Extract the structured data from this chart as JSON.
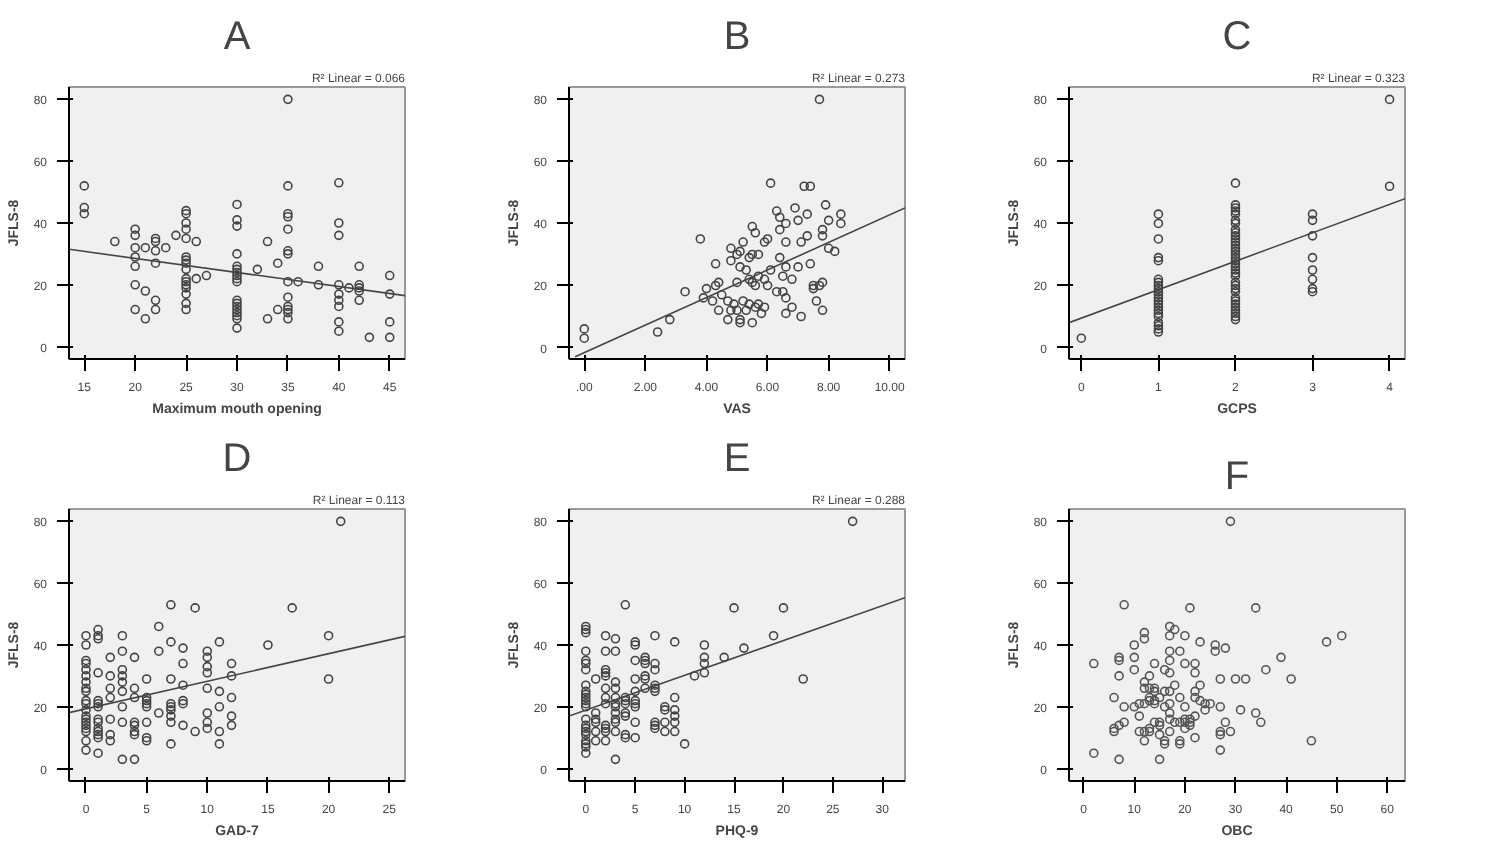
{
  "chart_data": [
    {
      "type": "scatter",
      "title": "A",
      "xlabel": "Maximum mouth opening",
      "ylabel": "JFLS-8",
      "xlim": [
        13.5,
        46.5
      ],
      "ylim": [
        -4,
        84
      ],
      "xticks": [
        15,
        20,
        25,
        30,
        35,
        40,
        45
      ],
      "yticks": [
        0,
        20,
        40,
        60,
        80
      ],
      "grid": false,
      "marker": "circle",
      "annotations": [
        "R² Linear = 0.066"
      ],
      "series": [
        {
          "color": "#444444",
          "x": [
            15,
            15,
            15,
            18,
            20,
            20,
            20,
            20,
            20,
            20,
            20,
            21,
            21,
            21,
            22,
            22,
            22,
            22,
            22,
            22,
            23,
            24,
            25,
            25,
            25,
            25,
            25,
            25,
            25,
            25,
            25,
            25,
            25,
            25,
            25,
            25,
            25,
            25,
            26,
            26,
            27,
            30,
            30,
            30,
            30,
            30,
            30,
            30,
            30,
            30,
            30,
            30,
            30,
            30,
            30,
            30,
            30,
            30,
            30,
            32,
            33,
            33,
            34,
            34,
            35,
            35,
            35,
            35,
            35,
            35,
            35,
            35,
            35,
            35,
            35,
            35,
            35,
            36,
            38,
            38,
            40,
            40,
            40,
            40,
            40,
            40,
            40,
            40,
            40,
            41,
            42,
            42,
            42,
            42,
            42,
            43,
            45,
            45,
            45,
            45
          ],
          "values": [
            52,
            45,
            43,
            34,
            38,
            36,
            32,
            29,
            26,
            20,
            12,
            32,
            18,
            9,
            35,
            34,
            31,
            27,
            15,
            12,
            32,
            36,
            44,
            43,
            40,
            38,
            35,
            29,
            28,
            27,
            25,
            22,
            21,
            20,
            19,
            17,
            14,
            12,
            34,
            22,
            23,
            46,
            41,
            39,
            30,
            26,
            25,
            24,
            23,
            22,
            21,
            15,
            14,
            13,
            12,
            11,
            10,
            9,
            6,
            25,
            34,
            9,
            12,
            27,
            80,
            52,
            43,
            42,
            38,
            31,
            30,
            21,
            16,
            13,
            12,
            11,
            9,
            21,
            26,
            20,
            53,
            40,
            36,
            20,
            17,
            15,
            13,
            8,
            5,
            19,
            26,
            20,
            19,
            18,
            15,
            3,
            23,
            17,
            8,
            3
          ]
        },
        {
          "type": "line",
          "marker": "none",
          "color": "#444444",
          "x": [
            13.5,
            46.5
          ],
          "values": [
            31.5,
            16.5
          ]
        }
      ]
    },
    {
      "type": "scatter",
      "title": "B",
      "xlabel": "VAS",
      "ylabel": "JFLS-8",
      "xlim": [
        -0.5,
        10.5
      ],
      "ylim": [
        -3.7,
        84
      ],
      "xticks": [
        {
          "value": 0,
          "label": ".00"
        },
        {
          "value": 2,
          "label": "2.00"
        },
        {
          "value": 4,
          "label": "4.00"
        },
        {
          "value": 6,
          "label": "6.00"
        },
        {
          "value": 8,
          "label": "8.00"
        },
        {
          "value": 10,
          "label": "10.00"
        }
      ],
      "yticks": [
        0,
        20,
        40,
        60,
        80
      ],
      "grid": false,
      "marker": "circle",
      "annotations": [
        "R² Linear = 0.273"
      ],
      "series": [
        {
          "color": "#444444",
          "x": [
            0,
            0,
            2.8,
            2.4,
            3.3,
            3.8,
            3.9,
            4.0,
            4.2,
            4.3,
            4.3,
            4.4,
            4.4,
            4.5,
            4.7,
            4.7,
            4.8,
            4.8,
            4.8,
            4.9,
            5.0,
            5.0,
            5.0,
            5.1,
            5.1,
            5.1,
            5.1,
            5.2,
            5.2,
            5.3,
            5.3,
            5.4,
            5.4,
            5.4,
            5.5,
            5.5,
            5.5,
            5.5,
            5.6,
            5.6,
            5.6,
            5.7,
            5.7,
            5.7,
            5.8,
            5.9,
            5.9,
            5.9,
            6.0,
            6.0,
            6.1,
            6.1,
            6.3,
            6.3,
            6.4,
            6.4,
            6.4,
            6.5,
            6.5,
            6.6,
            6.6,
            6.6,
            6.6,
            6.6,
            6.8,
            6.8,
            6.9,
            7.0,
            7.0,
            7.1,
            7.1,
            7.2,
            7.3,
            7.3,
            7.4,
            7.4,
            7.5,
            7.5,
            7.6,
            7.7,
            7.7,
            7.8,
            7.8,
            7.8,
            7.8,
            7.9,
            8.0,
            8.0,
            8.2,
            8.4,
            8.4
          ],
          "values": [
            6,
            3,
            9,
            5,
            18,
            35,
            16,
            19,
            15,
            27,
            20,
            21,
            12,
            17,
            15,
            9,
            32,
            28,
            12,
            14,
            30,
            21,
            12,
            31,
            26,
            9,
            8,
            34,
            15,
            25,
            12,
            29,
            22,
            14,
            39,
            30,
            21,
            8,
            37,
            20,
            13,
            30,
            23,
            14,
            11,
            34,
            22,
            13,
            35,
            20,
            25,
            53,
            18,
            44,
            42,
            38,
            29,
            23,
            18,
            40,
            34,
            26,
            16,
            11,
            22,
            13,
            45,
            41,
            26,
            34,
            10,
            52,
            43,
            36,
            52,
            27,
            20,
            19,
            15,
            80,
            20,
            38,
            36,
            21,
            12,
            46,
            41,
            32,
            31,
            43,
            40
          ]
        },
        {
          "type": "line",
          "marker": "none",
          "color": "#444444",
          "x": [
            -0.3,
            10.5
          ],
          "values": [
            -3,
            45
          ]
        }
      ]
    },
    {
      "type": "scatter",
      "title": "C",
      "xlabel": "GCPS",
      "ylabel": "JFLS-8",
      "xlim": [
        -0.16,
        4.2
      ],
      "ylim": [
        -3.7,
        84
      ],
      "xticks": [
        0,
        1,
        2,
        3,
        4
      ],
      "yticks": [
        0,
        20,
        40,
        60,
        80
      ],
      "grid": false,
      "marker": "circle",
      "annotations": [
        "R² Linear = 0.323"
      ],
      "series": [
        {
          "color": "#444444",
          "x": [
            0,
            1,
            1,
            1,
            1,
            1,
            1,
            1,
            1,
            1,
            1,
            1,
            1,
            1,
            1,
            1,
            1,
            1,
            1,
            1,
            1,
            1,
            1,
            2,
            2,
            2,
            2,
            2,
            2,
            2,
            2,
            2,
            2,
            2,
            2,
            2,
            2,
            2,
            2,
            2,
            2,
            2,
            2,
            2,
            2,
            2,
            2,
            2,
            2,
            2,
            2,
            2,
            2,
            2,
            2,
            2,
            2,
            2,
            3,
            3,
            3,
            3,
            3,
            3,
            3,
            3,
            4,
            4
          ],
          "values": [
            3,
            43,
            40,
            35,
            29,
            28,
            22,
            21,
            20,
            19,
            18,
            17,
            16,
            15,
            14,
            13,
            12,
            11,
            10,
            8,
            7,
            6,
            5,
            53,
            46,
            45,
            44,
            43,
            41,
            40,
            38,
            37,
            36,
            35,
            34,
            33,
            32,
            31,
            30,
            29,
            28,
            27,
            26,
            25,
            24,
            23,
            21,
            20,
            19,
            18,
            16,
            15,
            14,
            13,
            12,
            11,
            10,
            9,
            43,
            41,
            36,
            29,
            25,
            22,
            19,
            18,
            80,
            52
          ]
        },
        {
          "type": "line",
          "marker": "none",
          "color": "#444444",
          "x": [
            -0.16,
            4.2
          ],
          "values": [
            8,
            48
          ]
        }
      ]
    },
    {
      "type": "scatter",
      "title": "D",
      "xlabel": "GAD-7",
      "ylabel": "JFLS-8",
      "xlim": [
        -1.4,
        26.3
      ],
      "ylim": [
        -4,
        84
      ],
      "xticks": [
        0,
        5,
        10,
        15,
        20,
        25
      ],
      "yticks": [
        0,
        20,
        40,
        60,
        80
      ],
      "grid": false,
      "marker": "circle",
      "annotations": [
        "R² Linear = 0.113"
      ],
      "series": [
        {
          "color": "#444444",
          "x": [
            0,
            0,
            0,
            0,
            0,
            0,
            0,
            0,
            0,
            0,
            0,
            0,
            0,
            0,
            0,
            0,
            0,
            0,
            0,
            0,
            1,
            1,
            1,
            1,
            1,
            1,
            1,
            1,
            1,
            1,
            1,
            1,
            1,
            1,
            2,
            2,
            2,
            2,
            2,
            2,
            2,
            3,
            3,
            3,
            3,
            3,
            3,
            3,
            3,
            3,
            4,
            4,
            4,
            4,
            4,
            4,
            4,
            4,
            5,
            5,
            5,
            5,
            5,
            5,
            5,
            5,
            6,
            6,
            6,
            7,
            7,
            7,
            7,
            7,
            7,
            7,
            7,
            7,
            8,
            8,
            8,
            8,
            8,
            8,
            9,
            9,
            10,
            10,
            10,
            10,
            10,
            10,
            10,
            10,
            11,
            11,
            11,
            11,
            11,
            12,
            12,
            12,
            12,
            12,
            15,
            17,
            20,
            20,
            21
          ],
          "values": [
            43,
            40,
            35,
            34,
            32,
            30,
            28,
            26,
            25,
            22,
            21,
            19,
            17,
            16,
            15,
            14,
            13,
            12,
            9,
            6,
            45,
            43,
            42,
            31,
            22,
            21,
            20,
            16,
            15,
            13,
            12,
            11,
            10,
            5,
            36,
            30,
            26,
            23,
            16,
            11,
            9,
            43,
            38,
            32,
            30,
            28,
            25,
            20,
            15,
            3,
            36,
            26,
            23,
            15,
            14,
            12,
            11,
            3,
            29,
            23,
            22,
            21,
            20,
            15,
            10,
            9,
            46,
            38,
            18,
            53,
            41,
            29,
            21,
            20,
            19,
            17,
            15,
            8,
            39,
            34,
            27,
            22,
            21,
            14,
            52,
            12,
            38,
            36,
            33,
            31,
            26,
            18,
            15,
            13,
            41,
            25,
            20,
            12,
            8,
            34,
            30,
            23,
            17,
            14,
            40,
            52,
            43,
            29,
            80
          ]
        },
        {
          "type": "line",
          "marker": "none",
          "color": "#444444",
          "x": [
            -1.4,
            26.3
          ],
          "values": [
            18.1,
            42.8
          ]
        }
      ]
    },
    {
      "type": "scatter",
      "title": "E",
      "xlabel": "PHQ-9",
      "ylabel": "JFLS-8",
      "xlim": [
        -1.7,
        32.3
      ],
      "ylim": [
        -4,
        84
      ],
      "xticks": [
        0,
        5,
        10,
        15,
        20,
        25,
        30
      ],
      "yticks": [
        0,
        20,
        40,
        60,
        80
      ],
      "grid": false,
      "marker": "circle",
      "annotations": [
        "R² Linear = 0.288"
      ],
      "series": [
        {
          "color": "#444444",
          "x": [
            0,
            0,
            0,
            0,
            0,
            0,
            0,
            0,
            0,
            0,
            0,
            0,
            0,
            0,
            0,
            0,
            0,
            0,
            0,
            0,
            0,
            0,
            0,
            1,
            1,
            1,
            1,
            1,
            1,
            2,
            2,
            2,
            2,
            2,
            2,
            2,
            2,
            2,
            2,
            2,
            2,
            3,
            3,
            3,
            3,
            3,
            3,
            3,
            3,
            3,
            3,
            3,
            3,
            4,
            4,
            4,
            4,
            4,
            4,
            4,
            4,
            5,
            5,
            5,
            5,
            5,
            5,
            5,
            5,
            5,
            5,
            6,
            6,
            6,
            6,
            6,
            6,
            7,
            7,
            7,
            7,
            7,
            7,
            7,
            7,
            7,
            8,
            8,
            8,
            8,
            9,
            9,
            9,
            9,
            9,
            9,
            10,
            11,
            12,
            12,
            12,
            12,
            14,
            15,
            16,
            19,
            20,
            22,
            27
          ],
          "values": [
            46,
            45,
            44,
            38,
            35,
            34,
            32,
            27,
            25,
            24,
            23,
            22,
            21,
            20,
            16,
            14,
            13,
            12,
            11,
            9,
            8,
            7,
            5,
            29,
            18,
            16,
            15,
            12,
            9,
            43,
            38,
            32,
            31,
            30,
            26,
            23,
            21,
            14,
            13,
            12,
            9,
            42,
            38,
            28,
            26,
            23,
            21,
            20,
            18,
            16,
            15,
            12,
            3,
            53,
            23,
            22,
            21,
            18,
            17,
            11,
            10,
            41,
            40,
            35,
            29,
            25,
            22,
            21,
            20,
            15,
            10,
            36,
            35,
            34,
            30,
            29,
            26,
            43,
            34,
            32,
            27,
            26,
            25,
            15,
            14,
            13,
            20,
            19,
            15,
            12,
            41,
            23,
            19,
            17,
            15,
            12,
            8,
            30,
            40,
            36,
            34,
            31,
            36,
            52,
            39,
            43,
            52,
            29,
            80
          ]
        },
        {
          "type": "line",
          "marker": "none",
          "color": "#444444",
          "x": [
            -1.7,
            32.3
          ],
          "values": [
            17.0,
            55.3
          ]
        }
      ]
    },
    {
      "type": "scatter",
      "title": "F",
      "xlabel": "OBC",
      "ylabel": "JFLS-8",
      "xlim": [
        -2.9,
        63.5
      ],
      "ylim": [
        -4,
        84
      ],
      "xticks": [
        0,
        10,
        20,
        30,
        40,
        50,
        60
      ],
      "yticks": [
        0,
        20,
        40,
        60,
        80
      ],
      "grid": false,
      "marker": "circle",
      "series": [
        {
          "color": "#555555",
          "x": [
            2,
            2,
            6,
            6,
            6,
            7,
            7,
            7,
            7,
            7,
            8,
            8,
            8,
            10,
            10,
            10,
            10,
            11,
            11,
            11,
            12,
            12,
            12,
            12,
            12,
            12,
            12,
            13,
            13,
            13,
            13,
            13,
            13,
            14,
            14,
            14,
            14,
            14,
            14,
            15,
            15,
            15,
            15,
            15,
            16,
            16,
            16,
            16,
            16,
            17,
            17,
            17,
            17,
            17,
            17,
            17,
            17,
            17,
            17,
            18,
            18,
            18,
            19,
            19,
            19,
            19,
            19,
            20,
            20,
            20,
            20,
            20,
            20,
            21,
            21,
            21,
            21,
            22,
            22,
            22,
            22,
            22,
            22,
            23,
            23,
            23,
            24,
            24,
            25,
            26,
            26,
            27,
            27,
            27,
            27,
            27,
            28,
            28,
            29,
            29,
            30,
            31,
            32,
            34,
            34,
            35,
            36,
            39,
            41,
            45,
            48,
            51
          ],
          "values": [
            34,
            5,
            23,
            13,
            12,
            36,
            35,
            30,
            14,
            3,
            53,
            20,
            15,
            40,
            36,
            32,
            20,
            21,
            17,
            12,
            44,
            42,
            28,
            26,
            21,
            12,
            9,
            30,
            26,
            23,
            22,
            13,
            12,
            34,
            26,
            25,
            22,
            21,
            15,
            23,
            15,
            14,
            11,
            3,
            32,
            25,
            20,
            9,
            8,
            46,
            43,
            38,
            35,
            31,
            25,
            21,
            18,
            16,
            12,
            45,
            27,
            15,
            38,
            23,
            15,
            9,
            8,
            43,
            34,
            20,
            16,
            15,
            13,
            52,
            16,
            15,
            14,
            34,
            31,
            25,
            23,
            17,
            10,
            41,
            27,
            22,
            21,
            19,
            21,
            40,
            38,
            29,
            20,
            12,
            11,
            6,
            39,
            15,
            80,
            12,
            29,
            19,
            29,
            52,
            18,
            15,
            32,
            36,
            29,
            9,
            41,
            43
          ]
        }
      ]
    }
  ]
}
